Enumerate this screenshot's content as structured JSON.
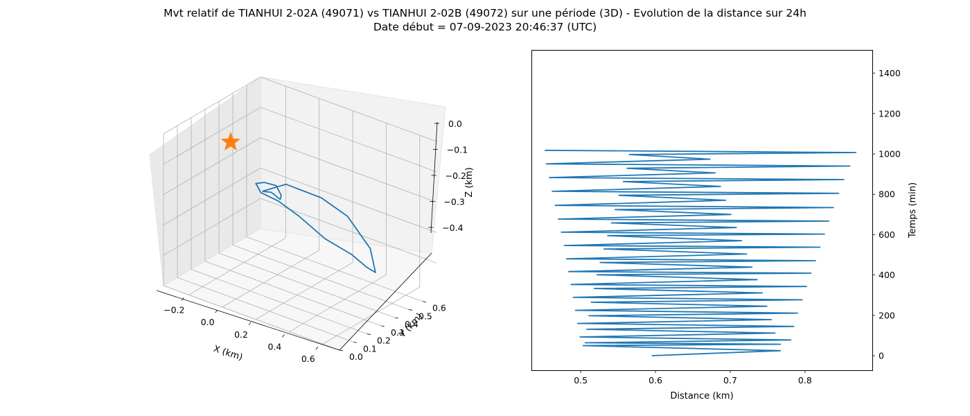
{
  "figure": {
    "title_line1": "Mvt relatif de TIANHUI 2-02A (49071) vs TIANHUI 2-02B (49072) sur une période (3D) - Evolution de la distance sur 24h",
    "title_line2": "Date début = 07-09-2023 20:46:37 (UTC)"
  },
  "colors": {
    "series": "#1f77b4",
    "marker": "#ff7f0e",
    "pane": "#f2f2f2",
    "grid": "#b0b0b0"
  },
  "chart_data": [
    {
      "type": "line",
      "projection": "3d",
      "xlabel": "X (km)",
      "ylabel": "Y (km)",
      "zlabel": "Z (km)",
      "x_ticks": [
        "−0.2",
        "0.0",
        "0.2",
        "0.4",
        "0.6"
      ],
      "y_ticks": [
        "0.0",
        "0.1",
        "0.2",
        "0.3",
        "0.4",
        "0.5",
        "0.6"
      ],
      "z_ticks": [
        "0.0",
        "−0.1",
        "−0.2",
        "−0.3",
        "−0.4"
      ],
      "grid": true,
      "series": [
        {
          "kind": "trajectory",
          "points": [
            [
              0.24,
              0.0,
              -0.07
            ],
            [
              0.34,
              0.05,
              -0.04
            ],
            [
              0.46,
              0.16,
              -0.09
            ],
            [
              0.5,
              0.3,
              -0.18
            ],
            [
              0.52,
              0.44,
              -0.32
            ],
            [
              0.46,
              0.55,
              -0.44
            ],
            [
              0.36,
              0.61,
              -0.46
            ],
            [
              0.26,
              0.62,
              -0.44
            ],
            [
              0.1,
              0.62,
              -0.42
            ],
            [
              -0.02,
              0.58,
              -0.36
            ],
            [
              -0.08,
              0.5,
              -0.3
            ],
            [
              -0.1,
              0.4,
              -0.25
            ],
            [
              -0.08,
              0.34,
              -0.2
            ],
            [
              0.02,
              0.28,
              -0.16
            ],
            [
              0.14,
              0.22,
              -0.13
            ],
            [
              0.22,
              0.16,
              -0.13
            ],
            [
              0.28,
              0.08,
              -0.11
            ],
            [
              0.26,
              0.04,
              -0.08
            ],
            [
              0.24,
              0.0,
              -0.07
            ]
          ]
        },
        {
          "kind": "marker",
          "marker": "star",
          "points": [
            [
              -0.28,
              0.4,
              -0.12
            ]
          ]
        }
      ]
    },
    {
      "type": "line",
      "xlabel": "Distance (km)",
      "ylabel": "Temps (min)",
      "xlim": [
        0.435,
        0.89
      ],
      "ylim": [
        -72,
        1512
      ],
      "x_ticks": [
        "0.5",
        "0.6",
        "0.7",
        "0.8"
      ],
      "y_ticks": [
        "0",
        "200",
        "400",
        "600",
        "800",
        "1000",
        "1200",
        "1400"
      ],
      "x_tick_values": [
        0.5,
        0.6,
        0.7,
        0.8
      ],
      "y_tick_values": [
        0,
        200,
        400,
        600,
        800,
        1000,
        1200,
        1400
      ],
      "grid": false,
      "series": [
        {
          "name": "",
          "x": [
            0.595,
            0.767,
            0.503,
            0.767,
            0.506,
            0.781,
            0.499,
            0.76,
            0.508,
            0.785,
            0.496,
            0.755,
            0.511,
            0.79,
            0.493,
            0.749,
            0.514,
            0.796,
            0.49,
            0.743,
            0.518,
            0.802,
            0.487,
            0.736,
            0.522,
            0.808,
            0.484,
            0.729,
            0.526,
            0.814,
            0.481,
            0.722,
            0.531,
            0.82,
            0.478,
            0.715,
            0.536,
            0.826,
            0.474,
            0.708,
            0.541,
            0.832,
            0.47,
            0.701,
            0.546,
            0.838,
            0.466,
            0.694,
            0.551,
            0.845,
            0.462,
            0.687,
            0.557,
            0.852,
            0.458,
            0.68,
            0.562,
            0.86,
            0.454,
            0.673,
            0.565,
            0.868,
            0.452
          ],
          "y": [
            0,
            25,
            50,
            57,
            64,
            78,
            93,
            112,
            131,
            145,
            160,
            179,
            198,
            211,
            225,
            245,
            265,
            277,
            289,
            311,
            333,
            343,
            353,
            377,
            401,
            409,
            417,
            439,
            462,
            471,
            480,
            504,
            529,
            538,
            546,
            570,
            595,
            603,
            612,
            635,
            658,
            667,
            677,
            700,
            724,
            734,
            745,
            770,
            795,
            805,
            815,
            839,
            863,
            873,
            883,
            906,
            929,
            940,
            951,
            974,
            997,
            1007,
            1018
          ]
        }
      ]
    }
  ]
}
